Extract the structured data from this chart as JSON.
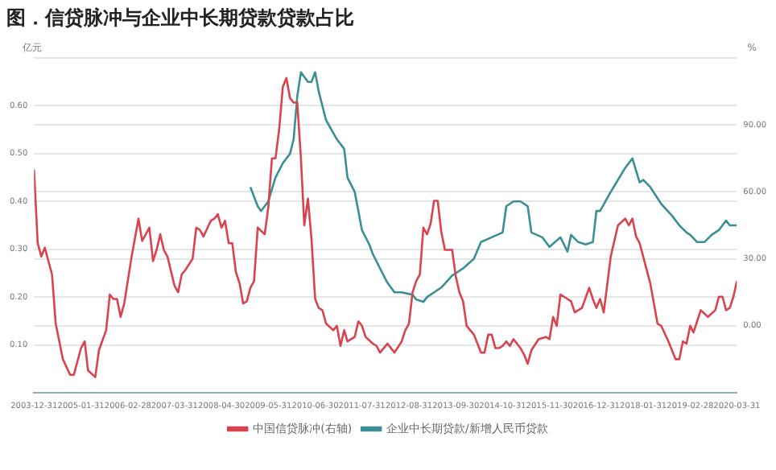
{
  "chart_data": {
    "type": "line",
    "title": "图．信贷脉冲与企业中长期贷款贷款占比",
    "ylabel": "亿元",
    "y2label": "%",
    "xlim": [
      "2003-12",
      "2020-03"
    ],
    "xticks": [
      {
        "value": "2003-12",
        "label": "2003-12-31"
      },
      {
        "value": "2005-01",
        "label": "2005-01-31"
      },
      {
        "value": "2006-02",
        "label": "2006-02-28"
      },
      {
        "value": "2007-03",
        "label": "2007-03-31"
      },
      {
        "value": "2008-04",
        "label": "2008-04-30"
      },
      {
        "value": "2009-05",
        "label": "2009-05-31"
      },
      {
        "value": "2010-06",
        "label": "2010-06-30"
      },
      {
        "value": "2011-07",
        "label": "2011-07-31"
      },
      {
        "value": "2012-08",
        "label": "2012-08-31"
      },
      {
        "value": "2013-09",
        "label": "2013-09-30"
      },
      {
        "value": "2014-10",
        "label": "2014-10-31"
      },
      {
        "value": "2015-11",
        "label": "2015-11-30"
      },
      {
        "value": "2016-12",
        "label": "2016-12-31"
      },
      {
        "value": "2018-01",
        "label": "2018-01-31"
      },
      {
        "value": "2019-02",
        "label": "2019-02-28"
      },
      {
        "value": "2020-03",
        "label": "2020-03-31"
      }
    ],
    "ylim": [
      0,
      0.7
    ],
    "yticks": [
      {
        "value": 0,
        "label": null
      },
      {
        "value": 0.1,
        "label": "0.10"
      },
      {
        "value": 0.2,
        "label": "0.20"
      },
      {
        "value": 0.3,
        "label": "0.30"
      },
      {
        "value": 0.4,
        "label": "0.40"
      },
      {
        "value": 0.5,
        "label": "0.50"
      },
      {
        "value": 0.6,
        "label": "0.60"
      },
      {
        "value": 0.7,
        "label": null
      }
    ],
    "y2lim": [
      -30,
      120
    ],
    "y2ticks": [
      {
        "value": -30,
        "label": null
      },
      {
        "value": 0,
        "label": "0.00"
      },
      {
        "value": 30,
        "label": "30.00"
      },
      {
        "value": 60,
        "label": "60.00"
      },
      {
        "value": 90,
        "label": "90.00"
      },
      {
        "value": 120,
        "label": null
      }
    ],
    "grid": "y",
    "legend": "bottom",
    "marker": "none",
    "line_style": "solid",
    "series": [
      {
        "name": "中国信贷脉冲(右轴)",
        "color": "#d9434f",
        "axis": "y2",
        "x": [
          "2003-12",
          "2004-01",
          "2004-02",
          "2004-03",
          "2004-05",
          "2004-06",
          "2004-08",
          "2004-10",
          "2004-11",
          "2005-01",
          "2005-02",
          "2005-03",
          "2005-05",
          "2005-06",
          "2005-08",
          "2005-09",
          "2005-10",
          "2005-11",
          "2005-12",
          "2006-01",
          "2006-03",
          "2006-05",
          "2006-06",
          "2006-08",
          "2006-09",
          "2006-10",
          "2006-11",
          "2006-12",
          "2007-01",
          "2007-03",
          "2007-04",
          "2007-05",
          "2007-06",
          "2007-08",
          "2007-09",
          "2007-10",
          "2007-11",
          "2008-01",
          "2008-02",
          "2008-03",
          "2008-04",
          "2008-05",
          "2008-06",
          "2008-07",
          "2008-08",
          "2008-09",
          "2008-10",
          "2008-11",
          "2008-12",
          "2009-01",
          "2009-02",
          "2009-04",
          "2009-05",
          "2009-06",
          "2009-07",
          "2009-08",
          "2009-09",
          "2009-10",
          "2009-11",
          "2009-12",
          "2010-01",
          "2010-02",
          "2010-03",
          "2010-04",
          "2010-05",
          "2010-06",
          "2010-07",
          "2010-08",
          "2010-09",
          "2010-11",
          "2010-12",
          "2011-01",
          "2011-02",
          "2011-03",
          "2011-05",
          "2011-06",
          "2011-07",
          "2011-08",
          "2011-10",
          "2011-11",
          "2011-12",
          "2012-02",
          "2012-04",
          "2012-06",
          "2012-07",
          "2012-08",
          "2012-09",
          "2012-10",
          "2012-11",
          "2012-12",
          "2013-01",
          "2013-02",
          "2013-03",
          "2013-04",
          "2013-05",
          "2013-06",
          "2013-08",
          "2013-09",
          "2013-10",
          "2013-11",
          "2013-12",
          "2014-02",
          "2014-04",
          "2014-05",
          "2014-06",
          "2014-07",
          "2014-08",
          "2014-09",
          "2014-10",
          "2014-11",
          "2014-12",
          "2015-01",
          "2015-03",
          "2015-04",
          "2015-05",
          "2015-06",
          "2015-08",
          "2015-10",
          "2015-11",
          "2015-12",
          "2016-01",
          "2016-02",
          "2016-04",
          "2016-05",
          "2016-06",
          "2016-08",
          "2016-10",
          "2016-11",
          "2016-12",
          "2017-01",
          "2017-02",
          "2017-04",
          "2017-06",
          "2017-08",
          "2017-09",
          "2017-10",
          "2017-11",
          "2017-12",
          "2018-03",
          "2018-05",
          "2018-06",
          "2018-08",
          "2018-10",
          "2018-11",
          "2018-12",
          "2019-01",
          "2019-02",
          "2019-03",
          "2019-05",
          "2019-07",
          "2019-09",
          "2019-10",
          "2019-11",
          "2019-12",
          "2020-01",
          "2020-02",
          "2020-03"
        ],
        "values": [
          70,
          37,
          31,
          35,
          23,
          1,
          -15,
          -22,
          -22,
          -10,
          -7,
          -20,
          -23,
          -11,
          -2,
          14,
          12,
          12,
          4,
          10,
          30,
          48,
          38,
          44,
          29,
          34,
          41,
          34,
          31,
          18,
          15,
          23,
          25,
          30,
          44,
          43,
          40,
          47,
          48,
          50,
          44,
          47,
          37,
          37,
          24,
          19,
          10,
          11,
          17,
          20,
          44,
          41,
          53,
          75,
          75,
          88,
          107,
          111,
          102,
          100,
          100,
          75,
          45,
          57,
          39,
          12,
          8,
          7,
          1,
          -2,
          0,
          -9,
          -2,
          -7,
          -5,
          2,
          0,
          -5,
          -8,
          -9,
          -12,
          -8,
          -12,
          -7,
          -2,
          1,
          15,
          20,
          23,
          44,
          41,
          46,
          56,
          56,
          42,
          34,
          34,
          22,
          15,
          11,
          0,
          -4,
          -12,
          -12,
          -4,
          -4,
          -10,
          -10,
          -9,
          -7,
          -9,
          -6,
          -10,
          -13,
          -17,
          -11,
          -6,
          -5,
          -6,
          4,
          0,
          14,
          12,
          11,
          6,
          8,
          17,
          12,
          8,
          12,
          6,
          31,
          45,
          48,
          45,
          48,
          40,
          37,
          19,
          1,
          0,
          -7,
          -15,
          -15,
          -7,
          -8,
          0,
          -3,
          7,
          4,
          7,
          13,
          13,
          7,
          8,
          13,
          20
        ]
      },
      {
        "name": "企业中长期贷款/新增人民币贷款",
        "color": "#3a8f93",
        "axis": "y",
        "x": [
          "2008-12",
          "2009-02",
          "2009-03",
          "2009-05",
          "2009-07",
          "2009-09",
          "2009-11",
          "2009-12",
          "2010-01",
          "2010-02",
          "2010-04",
          "2010-05",
          "2010-06",
          "2010-07",
          "2010-09",
          "2010-12",
          "2011-02",
          "2011-03",
          "2011-05",
          "2011-06",
          "2011-07",
          "2011-09",
          "2011-10",
          "2011-12",
          "2012-02",
          "2012-04",
          "2012-06",
          "2012-09",
          "2012-10",
          "2012-12",
          "2013-01",
          "2013-03",
          "2013-05",
          "2013-08",
          "2013-11",
          "2014-02",
          "2014-04",
          "2014-07",
          "2014-10",
          "2014-11",
          "2015-01",
          "2015-03",
          "2015-05",
          "2015-06",
          "2015-09",
          "2015-11",
          "2016-02",
          "2016-04",
          "2016-05",
          "2016-07",
          "2016-09",
          "2016-11",
          "2016-12",
          "2017-01",
          "2017-04",
          "2017-06",
          "2017-08",
          "2017-10",
          "2017-12",
          "2018-01",
          "2018-03",
          "2018-06",
          "2018-09",
          "2018-11",
          "2019-01",
          "2019-02",
          "2019-04",
          "2019-06",
          "2019-08",
          "2019-10",
          "2019-12",
          "2020-01",
          "2020-03"
        ],
        "values": [
          0.43,
          0.39,
          0.38,
          0.4,
          0.45,
          0.48,
          0.5,
          0.53,
          0.62,
          0.67,
          0.65,
          0.65,
          0.67,
          0.63,
          0.57,
          0.53,
          0.51,
          0.45,
          0.42,
          0.38,
          0.34,
          0.31,
          0.29,
          0.26,
          0.23,
          0.21,
          0.21,
          0.205,
          0.195,
          0.19,
          0.2,
          0.21,
          0.22,
          0.245,
          0.26,
          0.28,
          0.315,
          0.325,
          0.335,
          0.39,
          0.4,
          0.4,
          0.39,
          0.335,
          0.325,
          0.305,
          0.325,
          0.295,
          0.33,
          0.315,
          0.31,
          0.315,
          0.38,
          0.38,
          0.42,
          0.445,
          0.47,
          0.49,
          0.44,
          0.445,
          0.43,
          0.395,
          0.37,
          0.35,
          0.335,
          0.33,
          0.315,
          0.315,
          0.33,
          0.34,
          0.36,
          0.35,
          0.35
        ]
      }
    ]
  }
}
